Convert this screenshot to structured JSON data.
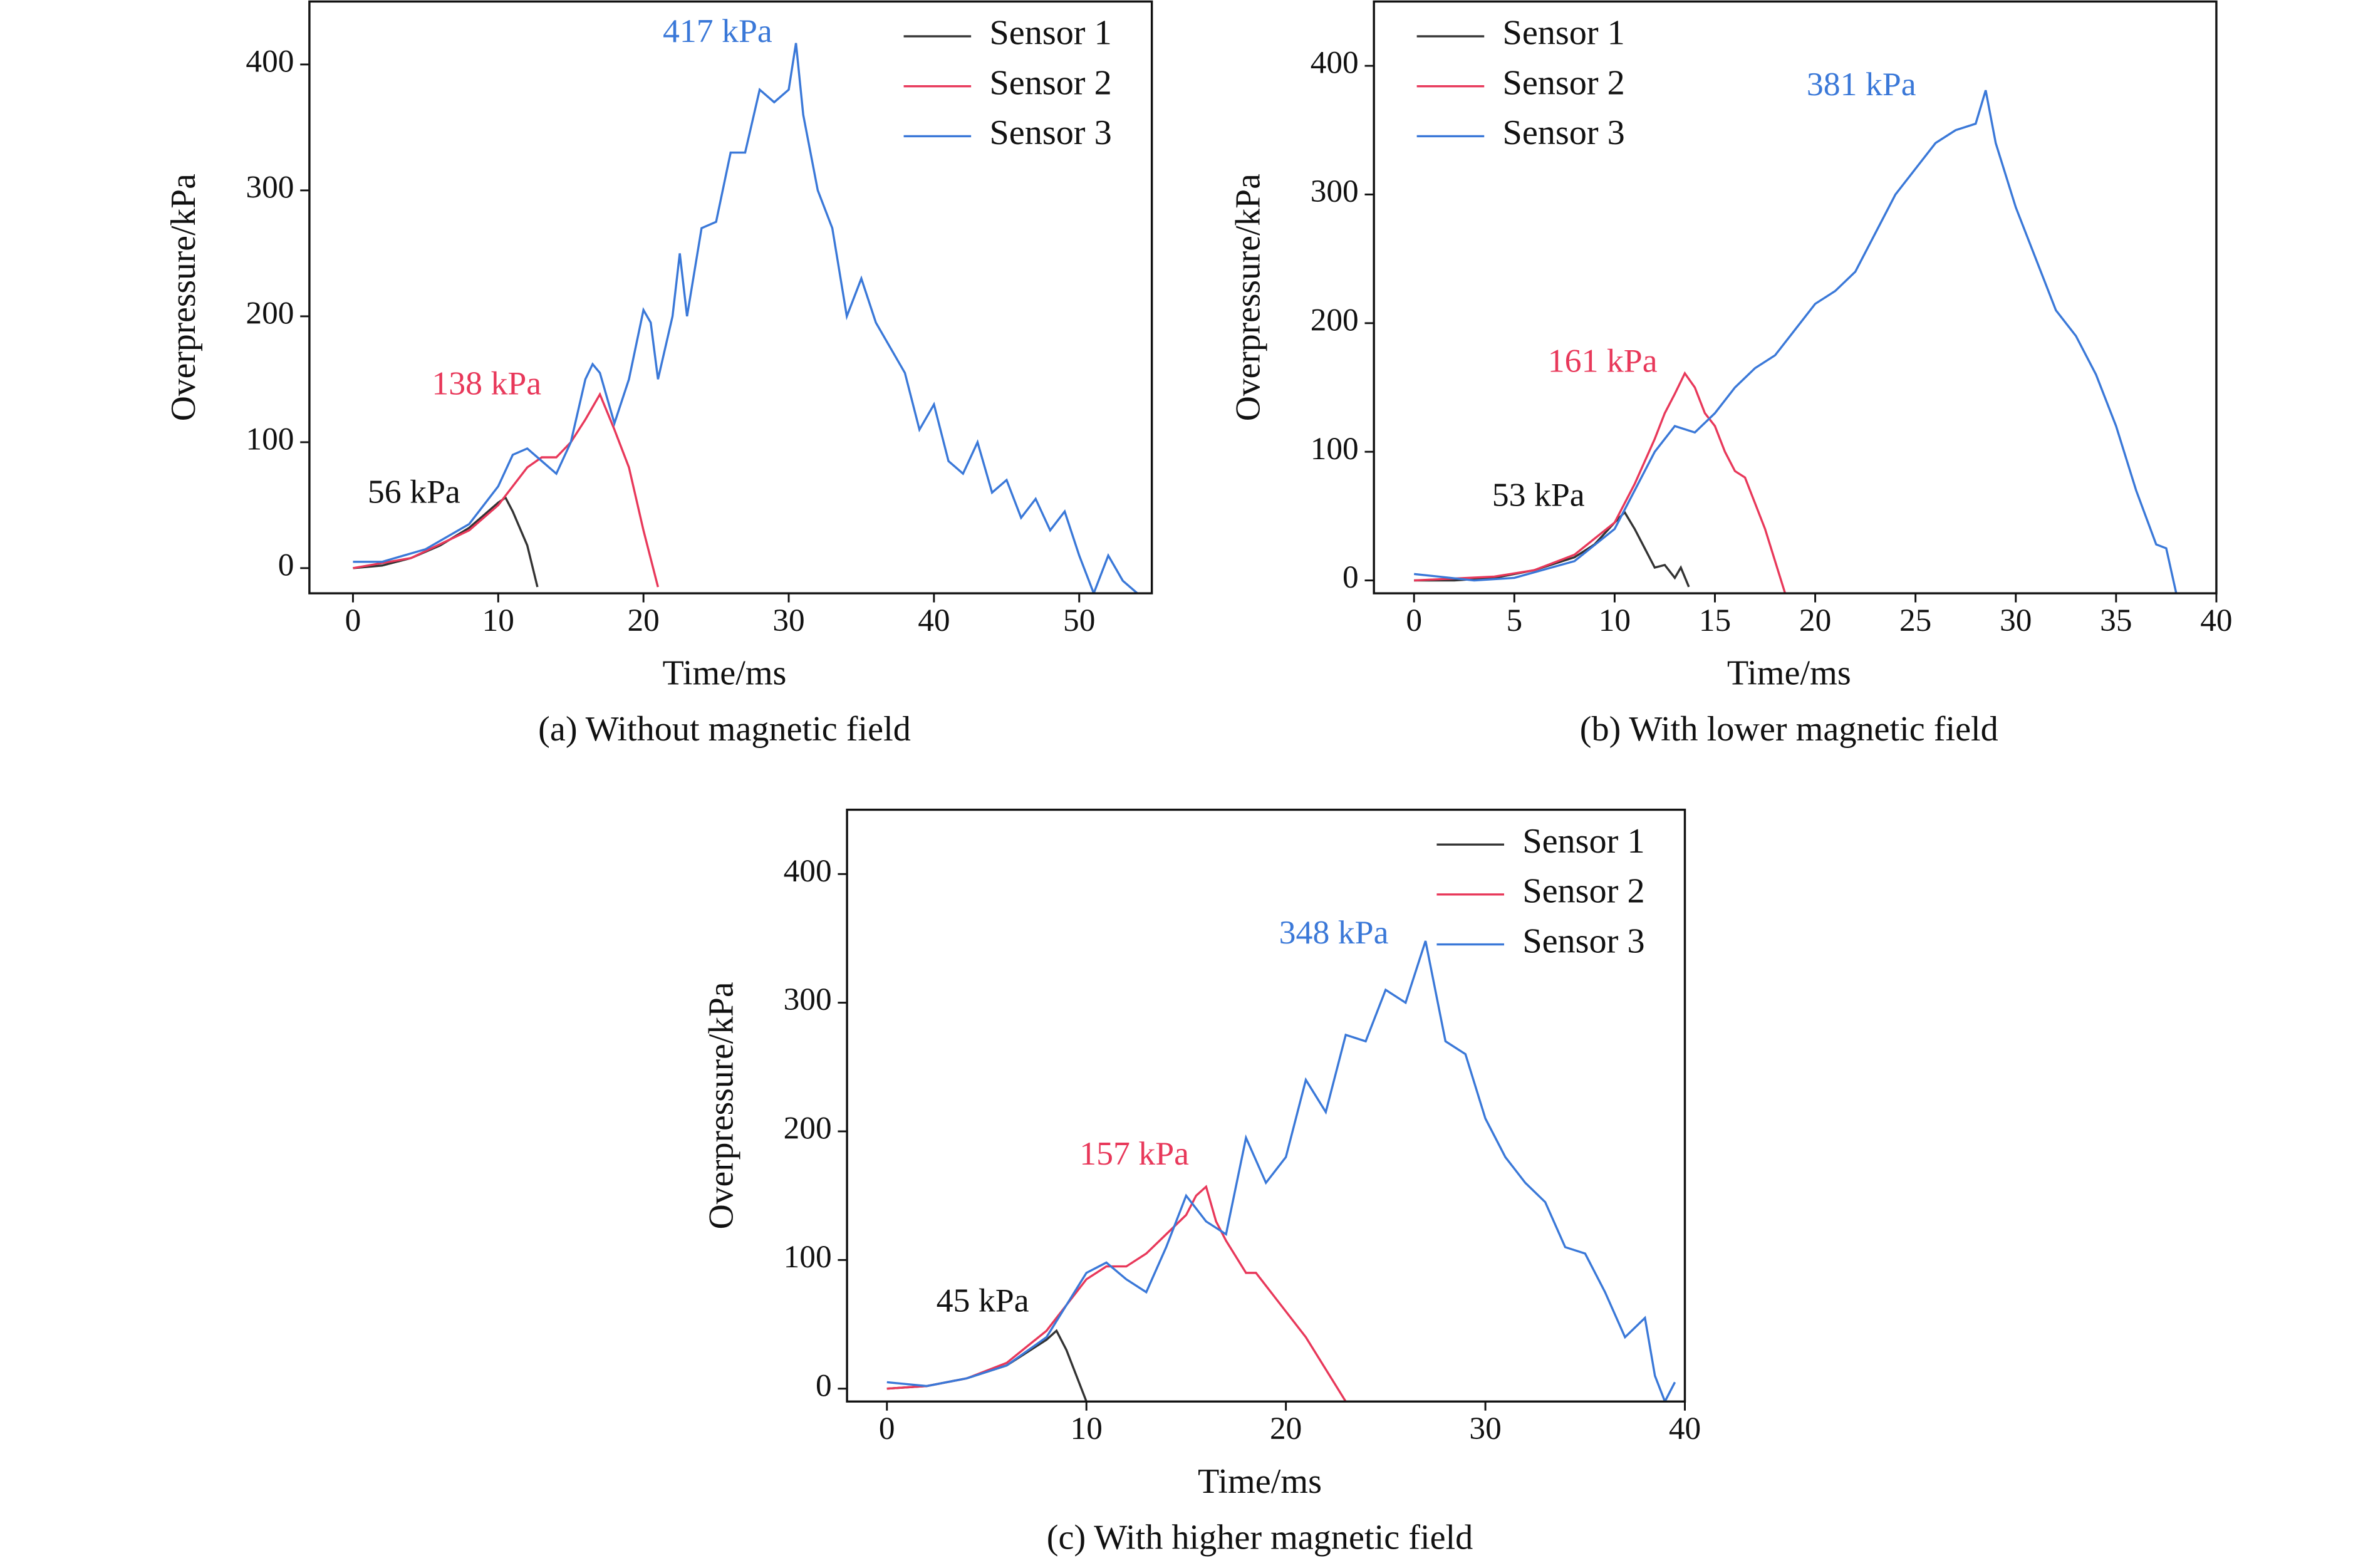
{
  "chart_data": [
    {
      "type": "line",
      "caption": "(a) Without magnetic field",
      "xlabel": "Time/ms",
      "ylabel": "Overpressure/kPa",
      "xlim": [
        -3,
        55
      ],
      "ylim": [
        -20,
        450
      ],
      "xticks": [
        0,
        10,
        20,
        30,
        40,
        50
      ],
      "yticks": [
        0,
        100,
        200,
        300,
        400
      ],
      "legend": "upper right",
      "series": [
        {
          "name": "Sensor 1",
          "color": "#333333",
          "x": [
            0,
            2,
            4,
            6,
            8,
            9,
            10,
            10.5,
            11,
            12,
            12.7
          ],
          "values": [
            0,
            2,
            8,
            18,
            32,
            42,
            52,
            56,
            45,
            18,
            -15
          ]
        },
        {
          "name": "Sensor 2",
          "color": "#e8385a",
          "x": [
            0,
            4,
            8,
            10,
            12,
            13,
            14,
            15,
            16,
            17,
            18,
            19,
            20,
            21
          ],
          "values": [
            0,
            8,
            30,
            50,
            80,
            88,
            88,
            100,
            118,
            138,
            110,
            80,
            30,
            -15
          ]
        },
        {
          "name": "Sensor 3",
          "color": "#3a78d8",
          "x": [
            0,
            2,
            5,
            8,
            10,
            11,
            12,
            13,
            14,
            15,
            16,
            16.5,
            17,
            18,
            19,
            20,
            20.5,
            21,
            22,
            22.5,
            23,
            24,
            25,
            26,
            27,
            28,
            29,
            30,
            30.5,
            31,
            32,
            33,
            34,
            35,
            36,
            37,
            38,
            39,
            40,
            41,
            42,
            43,
            44,
            45,
            46,
            47,
            48,
            49,
            50,
            51,
            52,
            53,
            54
          ],
          "values": [
            5,
            5,
            15,
            35,
            65,
            90,
            95,
            85,
            75,
            100,
            150,
            162,
            155,
            115,
            150,
            205,
            195,
            150,
            200,
            250,
            200,
            270,
            275,
            330,
            330,
            380,
            370,
            380,
            417,
            360,
            300,
            270,
            200,
            230,
            195,
            175,
            155,
            110,
            130,
            85,
            75,
            100,
            60,
            70,
            40,
            55,
            30,
            45,
            10,
            -20,
            10,
            -10,
            -20
          ]
        }
      ],
      "annotations": [
        {
          "text": "417 kPa",
          "x": 25.1,
          "y": 424,
          "color": "#3a78d8"
        },
        {
          "text": "138 kPa",
          "x": 9.2,
          "y": 144,
          "color": "#e8385a"
        },
        {
          "text": "56 kPa",
          "x": 4.2,
          "y": 58,
          "color": "#111111"
        }
      ]
    },
    {
      "type": "line",
      "caption": "(b) With lower magnetic field",
      "xlabel": "Time/ms",
      "ylabel": "Overpressure/kPa",
      "xlim": [
        -2,
        40
      ],
      "ylim": [
        -10,
        450
      ],
      "xticks": [
        0,
        5,
        10,
        15,
        20,
        25,
        30,
        35,
        40
      ],
      "yticks": [
        0,
        100,
        200,
        300,
        400
      ],
      "legend": "upper left",
      "series": [
        {
          "name": "Sensor 1",
          "color": "#333333",
          "x": [
            0,
            2,
            4,
            6,
            8,
            9,
            10,
            10.5,
            11,
            11.5,
            12,
            12.5,
            13,
            13.3,
            13.7
          ],
          "values": [
            0,
            0,
            2,
            8,
            18,
            28,
            45,
            53,
            40,
            25,
            10,
            12,
            2,
            10,
            -5
          ]
        },
        {
          "name": "Sensor 2",
          "color": "#e8385a",
          "x": [
            0,
            4,
            6,
            8,
            10,
            11,
            12,
            12.5,
            13,
            13.5,
            14,
            14.5,
            15,
            15.5,
            16,
            16.5,
            17,
            17.5,
            18,
            18.5
          ],
          "values": [
            0,
            3,
            8,
            20,
            45,
            75,
            110,
            130,
            145,
            161,
            150,
            130,
            120,
            100,
            85,
            80,
            60,
            40,
            15,
            -10
          ]
        },
        {
          "name": "Sensor 3",
          "color": "#3a78d8",
          "x": [
            0,
            3,
            5,
            8,
            10,
            11,
            12,
            13,
            14,
            15,
            16,
            17,
            18,
            19,
            20,
            21,
            22,
            23,
            24,
            25,
            26,
            27,
            28,
            28.5,
            29,
            30,
            31,
            32,
            33,
            34,
            35,
            36,
            37,
            37.5,
            38
          ],
          "values": [
            5,
            0,
            2,
            15,
            40,
            70,
            100,
            120,
            115,
            130,
            150,
            165,
            175,
            195,
            215,
            225,
            240,
            270,
            300,
            320,
            340,
            350,
            355,
            381,
            340,
            290,
            250,
            210,
            190,
            160,
            120,
            70,
            28,
            25,
            -10
          ]
        }
      ],
      "annotations": [
        {
          "text": "381 kPa",
          "x": 22.3,
          "y": 383,
          "color": "#3a78d8"
        },
        {
          "text": "161 kPa",
          "x": 9.4,
          "y": 168,
          "color": "#e8385a"
        },
        {
          "text": "53 kPa",
          "x": 6.2,
          "y": 64,
          "color": "#111111"
        }
      ]
    },
    {
      "type": "line",
      "caption": "(c) With higher magnetic field",
      "xlabel": "Time/ms",
      "ylabel": "Overpressure/kPa",
      "xlim": [
        -2,
        40
      ],
      "ylim": [
        -10,
        450
      ],
      "xticks": [
        0,
        10,
        20,
        30,
        40
      ],
      "yticks": [
        0,
        100,
        200,
        300,
        400
      ],
      "legend": "upper right",
      "series": [
        {
          "name": "Sensor 1",
          "color": "#333333",
          "x": [
            0,
            2,
            4,
            6,
            8,
            8.5,
            9,
            9.5,
            10
          ],
          "values": [
            0,
            2,
            8,
            18,
            38,
            45,
            30,
            10,
            -10
          ]
        },
        {
          "name": "Sensor 2",
          "color": "#e8385a",
          "x": [
            0,
            2,
            4,
            6,
            8,
            10,
            11,
            12,
            13,
            14,
            15,
            15.5,
            16,
            16.5,
            17,
            18,
            18.5,
            19,
            20,
            21,
            22,
            23
          ],
          "values": [
            0,
            2,
            8,
            20,
            45,
            85,
            95,
            95,
            105,
            120,
            135,
            150,
            157,
            130,
            115,
            90,
            90,
            80,
            60,
            40,
            15,
            -10
          ]
        },
        {
          "name": "Sensor 3",
          "color": "#3a78d8",
          "x": [
            0,
            2,
            4,
            6,
            8,
            10,
            11,
            12,
            13,
            14,
            15,
            16,
            17,
            18,
            19,
            20,
            21,
            22,
            23,
            24,
            25,
            26,
            27,
            28,
            29,
            30,
            31,
            32,
            33,
            34,
            35,
            36,
            37,
            38,
            38.5,
            39,
            39.5
          ],
          "values": [
            5,
            2,
            8,
            18,
            40,
            90,
            98,
            85,
            75,
            110,
            150,
            130,
            120,
            195,
            160,
            180,
            240,
            215,
            275,
            270,
            310,
            300,
            348,
            270,
            260,
            210,
            180,
            160,
            145,
            110,
            105,
            75,
            40,
            55,
            10,
            -10,
            5
          ]
        }
      ],
      "annotations": [
        {
          "text": "348 kPa",
          "x": 22.4,
          "y": 352,
          "color": "#3a78d8"
        },
        {
          "text": "157 kPa",
          "x": 12.4,
          "y": 180,
          "color": "#e8385a"
        },
        {
          "text": "45 kPa",
          "x": 4.8,
          "y": 66,
          "color": "#111111"
        }
      ]
    }
  ]
}
